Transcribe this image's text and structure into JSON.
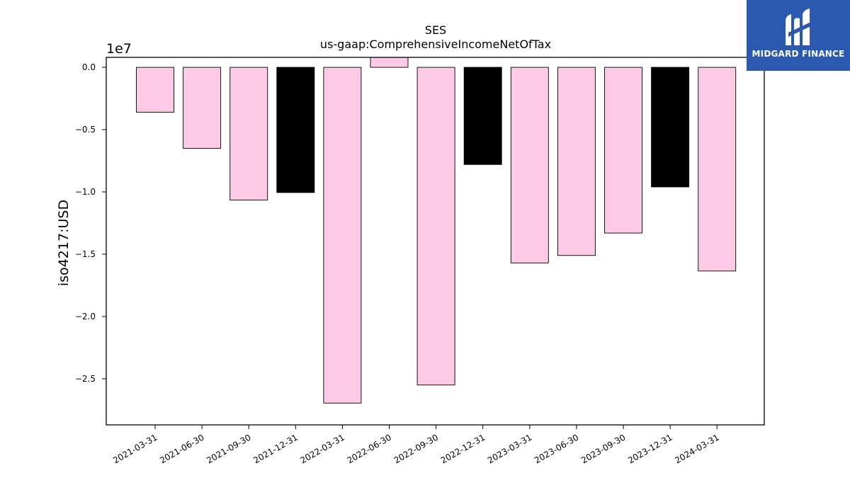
{
  "brand": {
    "name": "MIDGARD FINANCE",
    "color": "#2b59b0"
  },
  "chart_data": {
    "type": "bar",
    "title": "SES",
    "subtitle": "us-gaap:ComprehensiveIncomeNetOfTax",
    "ylabel": "iso4217:USD",
    "xlabel": "",
    "y_offset_label": "1e7",
    "y_scale": 10000000,
    "ylim": [
      -28700000,
      800000
    ],
    "yticks": [
      0.0,
      -0.5,
      -1.0,
      -1.5,
      -2.0,
      -2.5
    ],
    "ytick_labels": [
      "0.0",
      "−0.5",
      "−1.0",
      "−1.5",
      "−2.0",
      "−2.5"
    ],
    "grid": false,
    "categories": [
      "2021-03-31",
      "2021-06-30",
      "2021-09-30",
      "2021-12-31",
      "2022-03-31",
      "2022-06-30",
      "2022-09-30",
      "2022-12-31",
      "2023-03-31",
      "2023-06-30",
      "2023-09-30",
      "2023-12-31",
      "2024-03-31"
    ],
    "values": [
      -3600000,
      -6500000,
      -10650000,
      -10050000,
      -26950000,
      0,
      -25500000,
      -7800000,
      -15700000,
      -15100000,
      -13300000,
      -9600000,
      -16350000
    ],
    "bar_colors": [
      "#fccae4",
      "#fccae4",
      "#fccae4",
      "#000000",
      "#fccae4",
      "#fccae4",
      "#fccae4",
      "#000000",
      "#fccae4",
      "#fccae4",
      "#fccae4",
      "#000000",
      "#fccae4"
    ]
  }
}
